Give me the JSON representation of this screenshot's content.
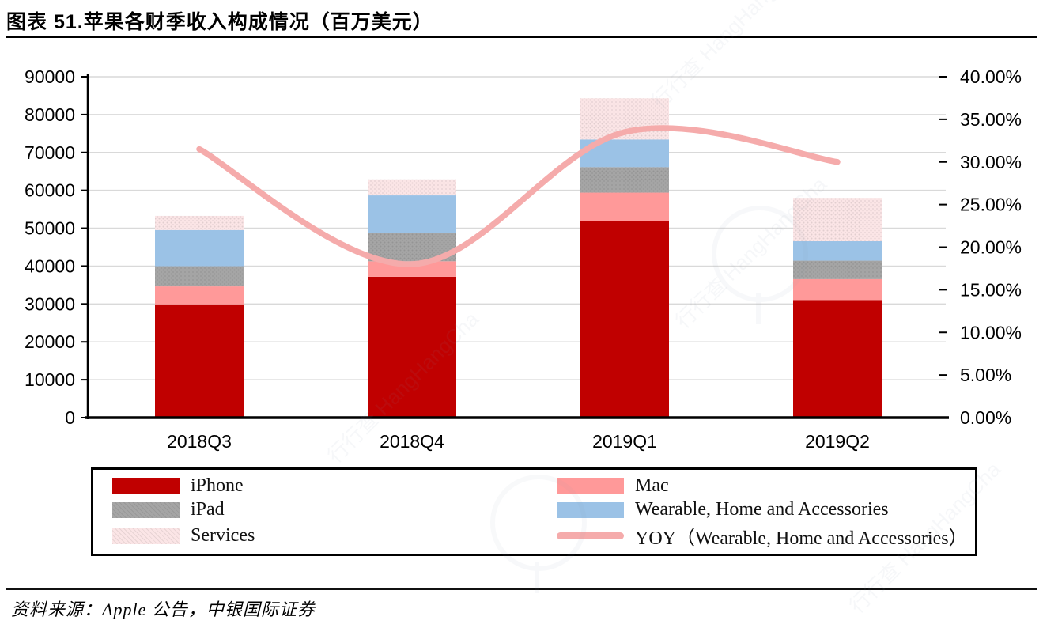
{
  "title": "图表 51.苹果各财季收入构成情况（百万美元）",
  "source": "资料来源：Apple 公告，中银国际证券",
  "watermark": "行行查 HangHangCha",
  "chart_data": {
    "type": "combo",
    "subtype": "stacked-bar-with-line",
    "categories": [
      "2018Q3",
      "2018Q4",
      "2019Q1",
      "2019Q2"
    ],
    "series": [
      {
        "name": "iPhone",
        "type": "bar",
        "color": "#C00000",
        "texture": false,
        "values": [
          29906,
          37185,
          51982,
          31051
        ]
      },
      {
        "name": "Mac",
        "type": "bar",
        "color": "#FF9999",
        "texture": false,
        "values": [
          4741,
          4089,
          7416,
          5513
        ]
      },
      {
        "name": "iPad",
        "type": "bar",
        "color": "#A5A5A5",
        "texture": true,
        "values": [
          5330,
          7411,
          6729,
          4872
        ]
      },
      {
        "name": "Wearable, Home and Accessories",
        "type": "bar",
        "color": "#9BC2E6",
        "texture": false,
        "values": [
          9548,
          9981,
          7308,
          5129
        ]
      },
      {
        "name": "Services",
        "type": "bar",
        "color": "#FBE5E6",
        "texture": true,
        "values": [
          3740,
          4234,
          10875,
          11450
        ]
      },
      {
        "name": "YOY（Wearable, Home and Accessories）",
        "type": "line",
        "axis": "right",
        "color": "#F5ABAB",
        "unit": "%",
        "values": [
          31.5,
          18.0,
          33.5,
          30.0
        ]
      }
    ],
    "bar_totals": [
      53265,
      62900,
      84310,
      58015
    ],
    "left_axis": {
      "min": 0,
      "max": 90000,
      "step": 10000,
      "ticks": [
        "0",
        "10000",
        "20000",
        "30000",
        "40000",
        "50000",
        "60000",
        "70000",
        "80000",
        "90000"
      ]
    },
    "right_axis": {
      "min": 0,
      "max": 40,
      "step": 5,
      "ticks": [
        "0.00%",
        "5.00%",
        "10.00%",
        "15.00%",
        "20.00%",
        "25.00%",
        "30.00%",
        "35.00%",
        "40.00%"
      ]
    },
    "grid": true,
    "legend_position": "bottom"
  },
  "legend": {
    "items": [
      {
        "label": "iPhone",
        "swatch": "bar",
        "color": "#C00000",
        "texture": false
      },
      {
        "label": "iPad",
        "swatch": "bar",
        "color": "#A5A5A5",
        "texture": true
      },
      {
        "label": "Services",
        "swatch": "bar",
        "color": "#FBE5E6",
        "texture": true
      },
      {
        "label": "Mac",
        "swatch": "bar",
        "color": "#FF9999",
        "texture": false
      },
      {
        "label": "Wearable, Home and Accessories",
        "swatch": "bar",
        "color": "#9BC2E6",
        "texture": false
      },
      {
        "label": "YOY（Wearable, Home and Accessories）",
        "swatch": "line",
        "color": "#F5ABAB",
        "texture": false
      }
    ]
  }
}
